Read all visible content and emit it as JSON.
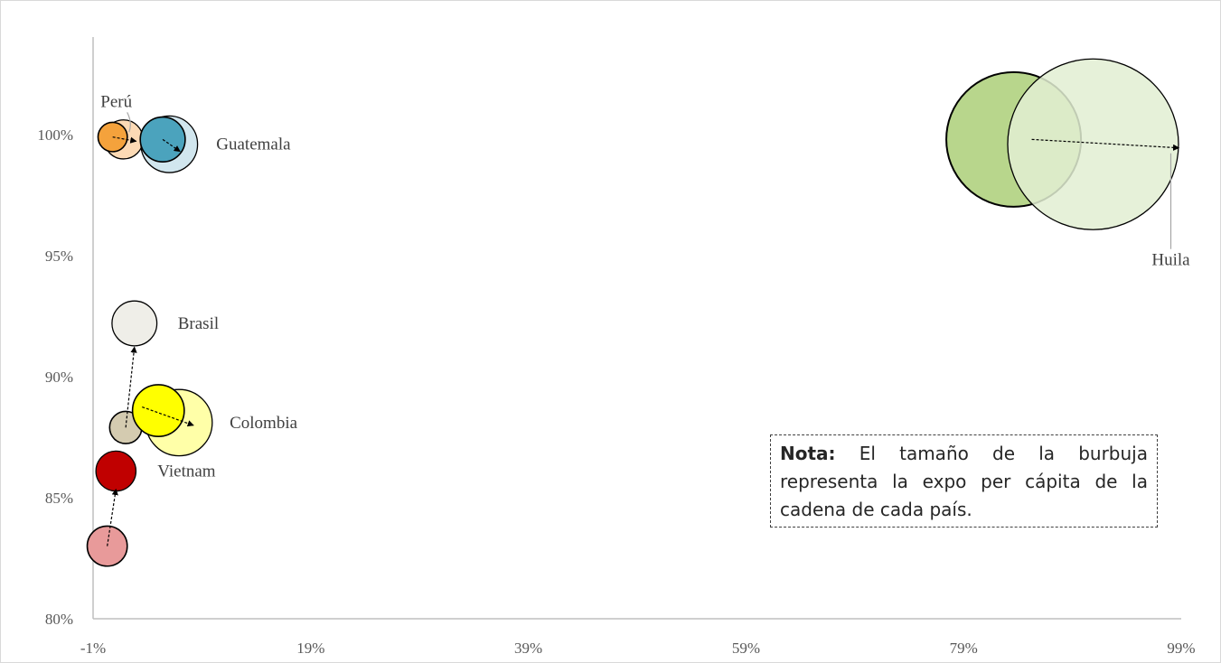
{
  "chart_data": {
    "type": "bubble",
    "xlim": [
      -1,
      99
    ],
    "ylim": [
      80,
      104
    ],
    "x_ticks": [
      "-1%",
      "19%",
      "39%",
      "59%",
      "79%",
      "99%"
    ],
    "y_ticks": [
      "80%",
      "85%",
      "90%",
      "95%",
      "100%"
    ],
    "grid": false,
    "series": [
      {
        "name": "Perú",
        "start": {
          "x": 0.8,
          "y": 99.9,
          "size": 3
        },
        "end": {
          "x": 1.8,
          "y": 99.8,
          "size": 4
        },
        "color_start": "#f4a23c",
        "color_end": "#fbd3a8"
      },
      {
        "name": "Guatemala",
        "start": {
          "x": 5.4,
          "y": 99.8,
          "size": 4.6
        },
        "end": {
          "x": 6.0,
          "y": 99.6,
          "size": 5.8
        },
        "color_start": "#4ba3bd",
        "color_end": "#c9e2eb"
      },
      {
        "name": "Brasil",
        "start": {
          "x": 2.0,
          "y": 87.9,
          "size": 3.3
        },
        "end": {
          "x": 2.8,
          "y": 92.2,
          "size": 4.6
        },
        "color_start": "#d4cbb0",
        "color_end": "#ecebe4"
      },
      {
        "name": "Colombia",
        "start": {
          "x": 5.0,
          "y": 88.6,
          "size": 5.3
        },
        "end": {
          "x": 6.9,
          "y": 88.1,
          "size": 6.8
        },
        "color_start": "#ffff00",
        "color_end": "#ffff99"
      },
      {
        "name": "Vietnam",
        "start": {
          "x": 0.3,
          "y": 83.0,
          "size": 4.1
        },
        "end": {
          "x": 1.1,
          "y": 86.1,
          "size": 4.1
        },
        "color_start": "#e89a9a",
        "color_end": "#c00000"
      },
      {
        "name": "Huila",
        "start": {
          "x": 83.6,
          "y": 99.8,
          "size": 13.8
        },
        "end": {
          "x": 90.9,
          "y": 99.6,
          "size": 17.5
        },
        "color_start": "#b8d68c",
        "color_end": "#e2eed2"
      }
    ]
  },
  "note": {
    "bold": "Nota:",
    "text": " El tamaño de la burbuja representa la expo per cápita de la cadena de cada país."
  }
}
